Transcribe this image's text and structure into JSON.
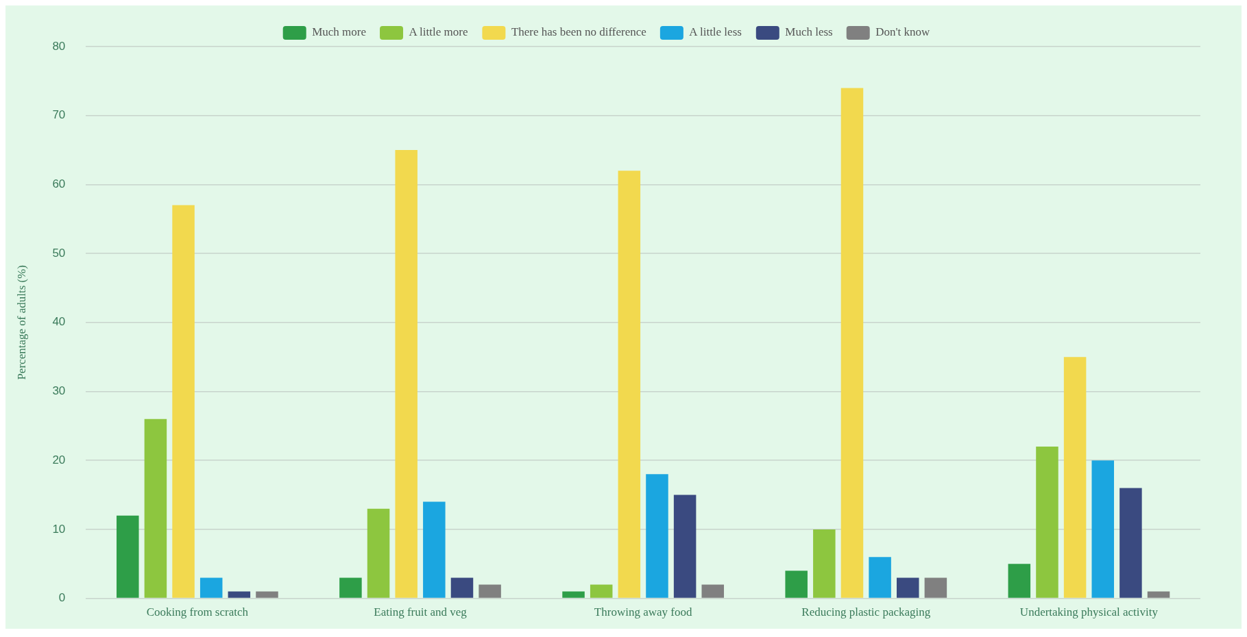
{
  "chart_data": {
    "type": "bar",
    "ylabel": "Percentage of adults (%)",
    "categories": [
      "Cooking from scratch",
      "Eating fruit and veg",
      "Throwing away food",
      "Reducing plastic packaging",
      "Undertaking physical activity"
    ],
    "series": [
      {
        "name": "Much more",
        "color": "#2e9e48",
        "values": [
          12,
          3,
          1,
          4,
          5
        ]
      },
      {
        "name": "A little more",
        "color": "#8dc63f",
        "values": [
          26,
          13,
          2,
          10,
          22
        ]
      },
      {
        "name": "There has been no difference",
        "color": "#f2d94e",
        "values": [
          57,
          65,
          62,
          74,
          35
        ]
      },
      {
        "name": "A little less",
        "color": "#1ba6e0",
        "values": [
          3,
          14,
          18,
          6,
          20
        ]
      },
      {
        "name": "Much less",
        "color": "#3a4a80",
        "values": [
          1,
          3,
          15,
          3,
          16
        ]
      },
      {
        "name": "Don't know",
        "color": "#808080",
        "values": [
          1,
          2,
          2,
          3,
          1
        ]
      }
    ],
    "ylim": [
      0,
      80
    ],
    "yticks": [
      0,
      10,
      20,
      30,
      40,
      50,
      60,
      70,
      80
    ],
    "grid": "y",
    "legend": "top"
  }
}
